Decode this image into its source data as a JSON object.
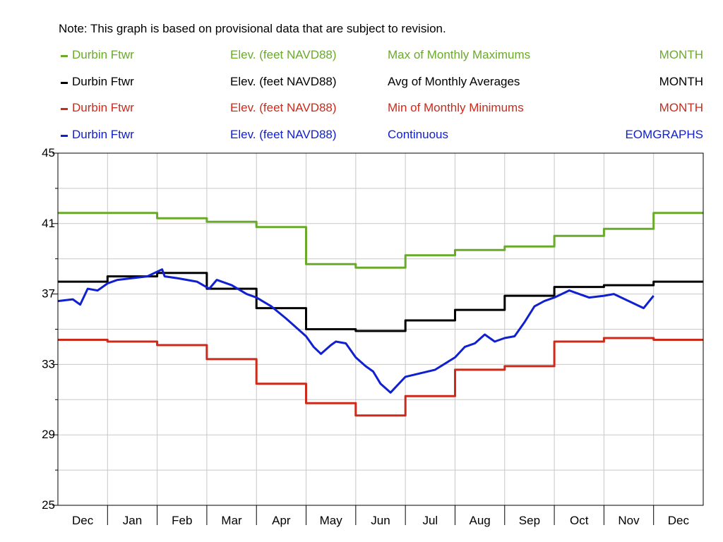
{
  "note": "Note: This graph is based on provisional data that are subject to revision.",
  "legend": [
    {
      "location": "Durbin Ftwr",
      "parameter": "Elev. (feet NAVD88)",
      "statistic": "Max of Monthly Maximums",
      "period": "MONTH",
      "color": "#6aaa2a"
    },
    {
      "location": "Durbin Ftwr",
      "parameter": "Elev. (feet NAVD88)",
      "statistic": "Avg of Monthly Averages",
      "period": "MONTH",
      "color": "#000000"
    },
    {
      "location": "Durbin Ftwr",
      "parameter": "Elev. (feet NAVD88)",
      "statistic": "Min of Monthly Minimums",
      "period": "MONTH",
      "color": "#cc2a1a"
    },
    {
      "location": "Durbin Ftwr",
      "parameter": "Elev. (feet NAVD88)",
      "statistic": "Continuous",
      "period": "EOMGRAPHS",
      "color": "#1020d0"
    }
  ],
  "chart_data": {
    "type": "line",
    "x_unit": "month",
    "categories": [
      "Dec",
      "Jan",
      "Feb",
      "Mar",
      "Apr",
      "May",
      "Jun",
      "Jul",
      "Aug",
      "Sep",
      "Oct",
      "Nov",
      "Dec"
    ],
    "ylim": [
      25,
      45
    ],
    "yticks": [
      25,
      29,
      33,
      37,
      41,
      45
    ],
    "grid": true,
    "series": [
      {
        "name": "Max of Monthly Maximums",
        "style": "step",
        "color": "#6aaa2a",
        "values": [
          41.6,
          41.6,
          41.3,
          41.1,
          40.8,
          38.7,
          38.5,
          39.2,
          39.5,
          39.7,
          40.3,
          40.7,
          41.6
        ]
      },
      {
        "name": "Avg of Monthly Averages",
        "style": "step",
        "color": "#000000",
        "values": [
          37.7,
          38.0,
          38.2,
          37.3,
          36.2,
          35.0,
          34.9,
          35.5,
          36.1,
          36.9,
          37.4,
          37.5,
          37.7
        ]
      },
      {
        "name": "Min of Monthly Minimums",
        "style": "step",
        "color": "#cc2a1a",
        "values": [
          34.4,
          34.3,
          34.1,
          33.3,
          31.9,
          30.8,
          30.1,
          31.2,
          32.7,
          32.9,
          34.3,
          34.5,
          34.4
        ]
      },
      {
        "name": "Continuous",
        "style": "line",
        "color": "#1020d0",
        "x": [
          0.0,
          0.3,
          0.45,
          0.6,
          0.8,
          1.0,
          1.2,
          1.5,
          1.8,
          2.1,
          2.15,
          2.4,
          2.8,
          3.05,
          3.2,
          3.5,
          3.8,
          4.0,
          4.3,
          4.6,
          5.0,
          5.15,
          5.3,
          5.5,
          5.6,
          5.8,
          6.0,
          6.2,
          6.35,
          6.5,
          6.7,
          7.0,
          7.3,
          7.6,
          8.0,
          8.2,
          8.4,
          8.6,
          8.8,
          9.0,
          9.2,
          9.4,
          9.6,
          9.8,
          10.0,
          10.3,
          10.7,
          11.0,
          11.2,
          11.5,
          11.8,
          12.0
        ],
        "values": [
          36.6,
          36.7,
          36.4,
          37.3,
          37.2,
          37.6,
          37.8,
          37.9,
          38.0,
          38.4,
          38.0,
          37.9,
          37.7,
          37.3,
          37.8,
          37.5,
          37.0,
          36.8,
          36.3,
          35.6,
          34.6,
          34.0,
          33.6,
          34.1,
          34.3,
          34.2,
          33.4,
          32.9,
          32.6,
          31.9,
          31.4,
          32.3,
          32.5,
          32.7,
          33.4,
          34.0,
          34.2,
          34.7,
          34.3,
          34.5,
          34.6,
          35.4,
          36.3,
          36.6,
          36.8,
          37.2,
          36.8,
          36.9,
          37.0,
          36.6,
          36.2,
          36.9
        ]
      }
    ]
  }
}
